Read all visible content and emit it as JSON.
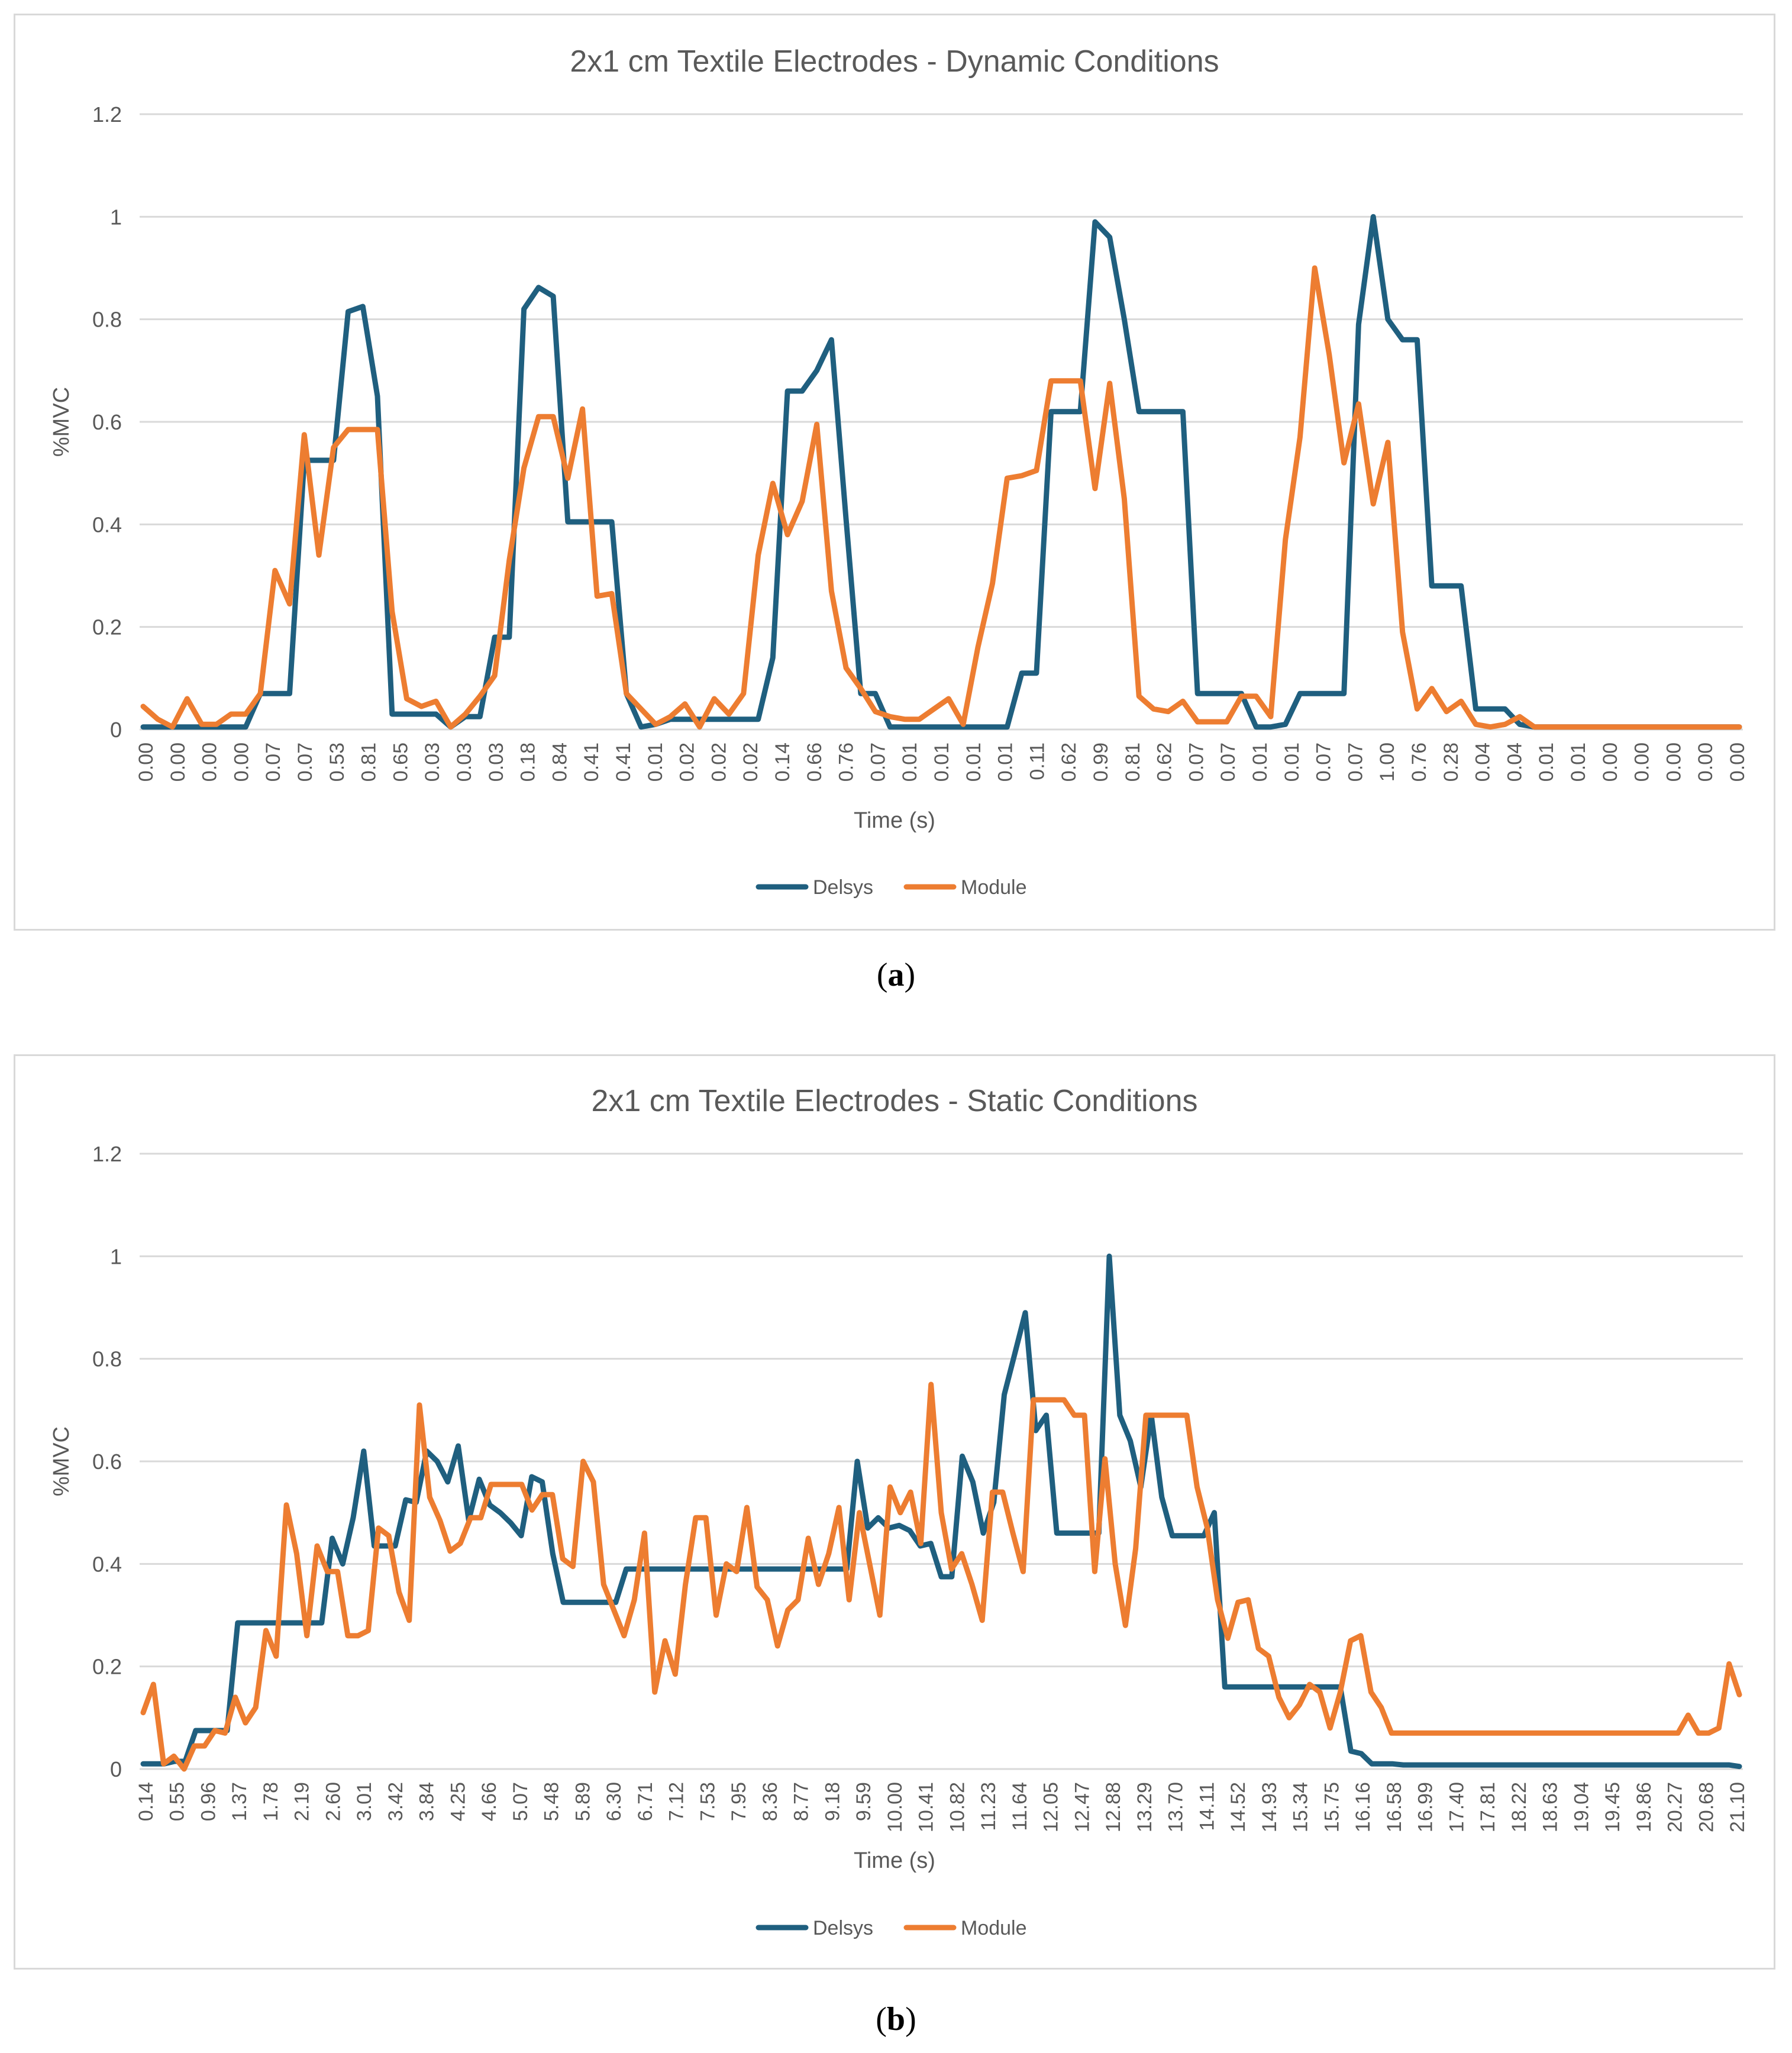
{
  "figures": [
    {
      "caption_letter": "a"
    },
    {
      "caption_letter": "b"
    }
  ],
  "colors": {
    "delsys": "#1f5f7f",
    "module": "#ed7d31",
    "grid": "#d9d9d9",
    "text": "#595959"
  },
  "chart_data": [
    {
      "type": "line",
      "title": "2x1 cm Textile Electrodes - Dynamic Conditions",
      "xlabel": "Time (s)",
      "ylabel": "%MVC",
      "ylim": [
        0,
        1.2
      ],
      "yticks": [
        "0",
        "0.2",
        "0.4",
        "0.6",
        "0.8",
        "1",
        "1.2"
      ],
      "grid": true,
      "legend": "bottom-center",
      "xtick_labels": [
        "0.00",
        "0.00",
        "0.00",
        "0.00",
        "0.07",
        "0.07",
        "0.53",
        "0.81",
        "0.65",
        "0.03",
        "0.03",
        "0.03",
        "0.18",
        "0.84",
        "0.41",
        "0.41",
        "0.01",
        "0.02",
        "0.02",
        "0.02",
        "0.14",
        "0.66",
        "0.76",
        "0.07",
        "0.01",
        "0.01",
        "0.01",
        "0.01",
        "0.11",
        "0.62",
        "0.99",
        "0.81",
        "0.62",
        "0.07",
        "0.07",
        "0.01",
        "0.01",
        "0.07",
        "0.07",
        "1.00",
        "0.76",
        "0.28",
        "0.04",
        "0.04",
        "0.01",
        "0.01",
        "0.00",
        "0.00",
        "0.00",
        "0.00",
        "0.00"
      ],
      "series": [
        {
          "name": "Delsys",
          "values": [
            0.005,
            0.005,
            0.005,
            0.005,
            0.005,
            0.005,
            0.005,
            0.005,
            0.07,
            0.07,
            0.07,
            0.525,
            0.525,
            0.525,
            0.815,
            0.825,
            0.65,
            0.03,
            0.03,
            0.03,
            0.03,
            0.005,
            0.025,
            0.025,
            0.18,
            0.18,
            0.82,
            0.862,
            0.845,
            0.405,
            0.405,
            0.405,
            0.405,
            0.07,
            0.005,
            0.01,
            0.02,
            0.02,
            0.02,
            0.02,
            0.02,
            0.02,
            0.02,
            0.14,
            0.66,
            0.66,
            0.7,
            0.76,
            0.41,
            0.07,
            0.07,
            0.005,
            0.005,
            0.005,
            0.005,
            0.005,
            0.005,
            0.005,
            0.005,
            0.005,
            0.11,
            0.11,
            0.62,
            0.62,
            0.62,
            0.99,
            0.96,
            0.8,
            0.62,
            0.62,
            0.62,
            0.62,
            0.07,
            0.07,
            0.07,
            0.07,
            0.005,
            0.005,
            0.01,
            0.07,
            0.07,
            0.07,
            0.07,
            0.79,
            1.0,
            0.8,
            0.76,
            0.76,
            0.28,
            0.28,
            0.28,
            0.04,
            0.04,
            0.04,
            0.01,
            0.005,
            0.005,
            0.005,
            0.005,
            0.005,
            0.005,
            0.005,
            0.005,
            0.005,
            0.005,
            0.005,
            0.005,
            0.005,
            0.005,
            0.005
          ]
        },
        {
          "name": "Module",
          "values": [
            0.045,
            0.02,
            0.005,
            0.06,
            0.01,
            0.01,
            0.03,
            0.03,
            0.07,
            0.31,
            0.245,
            0.575,
            0.34,
            0.55,
            0.585,
            0.585,
            0.585,
            0.23,
            0.06,
            0.045,
            0.055,
            0.005,
            0.03,
            0.065,
            0.105,
            0.33,
            0.51,
            0.61,
            0.61,
            0.49,
            0.625,
            0.26,
            0.265,
            0.07,
            0.04,
            0.01,
            0.025,
            0.05,
            0.005,
            0.06,
            0.03,
            0.07,
            0.34,
            0.48,
            0.38,
            0.445,
            0.595,
            0.27,
            0.12,
            0.08,
            0.035,
            0.025,
            0.02,
            0.02,
            0.04,
            0.06,
            0.01,
            0.16,
            0.285,
            0.49,
            0.495,
            0.505,
            0.68,
            0.68,
            0.68,
            0.47,
            0.675,
            0.45,
            0.065,
            0.04,
            0.035,
            0.055,
            0.015,
            0.015,
            0.015,
            0.065,
            0.065,
            0.025,
            0.37,
            0.57,
            0.9,
            0.73,
            0.52,
            0.635,
            0.44,
            0.56,
            0.19,
            0.04,
            0.08,
            0.035,
            0.055,
            0.01,
            0.005,
            0.01,
            0.025,
            0.005,
            0.005,
            0.005,
            0.005,
            0.005,
            0.005,
            0.005,
            0.005,
            0.005,
            0.005,
            0.005,
            0.005,
            0.005,
            0.005,
            0.005
          ]
        }
      ]
    },
    {
      "type": "line",
      "title": "2x1 cm Textile Electrodes - Static Conditions",
      "xlabel": "Time (s)",
      "ylabel": "%MVC",
      "ylim": [
        0,
        1.2
      ],
      "yticks": [
        "0",
        "0.2",
        "0.4",
        "0.6",
        "0.8",
        "1",
        "1.2"
      ],
      "grid": true,
      "legend": "bottom-center",
      "xtick_labels": [
        "0.14",
        "0.55",
        "0.96",
        "1.37",
        "1.78",
        "2.19",
        "2.60",
        "3.01",
        "3.42",
        "3.84",
        "4.25",
        "4.66",
        "5.07",
        "5.48",
        "5.89",
        "6.30",
        "6.71",
        "7.12",
        "7.53",
        "7.95",
        "8.36",
        "8.77",
        "9.18",
        "9.59",
        "10.00",
        "10.41",
        "10.82",
        "11.23",
        "11.64",
        "12.05",
        "12.47",
        "12.88",
        "13.29",
        "13.70",
        "14.11",
        "14.52",
        "14.93",
        "15.34",
        "15.75",
        "16.16",
        "16.58",
        "16.99",
        "17.40",
        "17.81",
        "18.22",
        "18.63",
        "19.04",
        "19.45",
        "19.86",
        "20.27",
        "20.68",
        "21.10"
      ],
      "series": [
        {
          "name": "Delsys",
          "values": [
            0.01,
            0.01,
            0.01,
            0.015,
            0.015,
            0.075,
            0.075,
            0.075,
            0.075,
            0.285,
            0.285,
            0.285,
            0.285,
            0.285,
            0.285,
            0.285,
            0.285,
            0.285,
            0.45,
            0.4,
            0.49,
            0.62,
            0.435,
            0.435,
            0.435,
            0.525,
            0.52,
            0.62,
            0.6,
            0.56,
            0.63,
            0.485,
            0.565,
            0.515,
            0.5,
            0.48,
            0.455,
            0.57,
            0.56,
            0.42,
            0.325,
            0.325,
            0.325,
            0.325,
            0.325,
            0.325,
            0.39,
            0.39,
            0.39,
            0.39,
            0.39,
            0.39,
            0.39,
            0.39,
            0.39,
            0.39,
            0.39,
            0.39,
            0.39,
            0.39,
            0.39,
            0.39,
            0.39,
            0.39,
            0.39,
            0.39,
            0.39,
            0.39,
            0.6,
            0.47,
            0.49,
            0.47,
            0.475,
            0.465,
            0.435,
            0.44,
            0.375,
            0.375,
            0.61,
            0.56,
            0.46,
            0.52,
            0.73,
            0.81,
            0.89,
            0.66,
            0.69,
            0.46,
            0.46,
            0.46,
            0.46,
            0.46,
            1.0,
            0.69,
            0.64,
            0.55,
            0.69,
            0.53,
            0.455,
            0.455,
            0.455,
            0.455,
            0.5,
            0.16,
            0.16,
            0.16,
            0.16,
            0.16,
            0.16,
            0.16,
            0.16,
            0.16,
            0.16,
            0.16,
            0.16,
            0.035,
            0.03,
            0.01,
            0.01,
            0.01,
            0.008,
            0.008,
            0.008,
            0.008,
            0.008,
            0.008,
            0.008,
            0.008,
            0.008,
            0.008,
            0.008,
            0.008,
            0.008,
            0.008,
            0.008,
            0.008,
            0.008,
            0.008,
            0.008,
            0.008,
            0.008,
            0.008,
            0.008,
            0.008,
            0.008,
            0.008,
            0.008,
            0.008,
            0.008,
            0.008,
            0.008,
            0.008,
            0.005
          ]
        },
        {
          "name": "Module",
          "values": [
            0.11,
            0.165,
            0.01,
            0.025,
            0.0,
            0.045,
            0.045,
            0.075,
            0.07,
            0.14,
            0.09,
            0.12,
            0.27,
            0.22,
            0.515,
            0.42,
            0.26,
            0.435,
            0.385,
            0.385,
            0.26,
            0.26,
            0.27,
            0.47,
            0.455,
            0.345,
            0.29,
            0.71,
            0.53,
            0.485,
            0.425,
            0.44,
            0.49,
            0.49,
            0.555,
            0.555,
            0.555,
            0.555,
            0.505,
            0.535,
            0.535,
            0.41,
            0.395,
            0.6,
            0.56,
            0.36,
            0.31,
            0.26,
            0.33,
            0.46,
            0.15,
            0.25,
            0.185,
            0.36,
            0.49,
            0.49,
            0.3,
            0.4,
            0.385,
            0.51,
            0.355,
            0.33,
            0.24,
            0.31,
            0.33,
            0.45,
            0.36,
            0.42,
            0.51,
            0.33,
            0.5,
            0.4,
            0.3,
            0.55,
            0.5,
            0.54,
            0.44,
            0.75,
            0.5,
            0.39,
            0.42,
            0.36,
            0.29,
            0.54,
            0.54,
            0.46,
            0.385,
            0.72,
            0.72,
            0.72,
            0.72,
            0.69,
            0.69,
            0.385,
            0.605,
            0.4,
            0.28,
            0.43,
            0.69,
            0.69,
            0.69,
            0.69,
            0.69,
            0.55,
            0.47,
            0.33,
            0.255,
            0.325,
            0.33,
            0.235,
            0.22,
            0.14,
            0.1,
            0.125,
            0.165,
            0.15,
            0.08,
            0.15,
            0.25,
            0.26,
            0.15,
            0.12,
            0.07,
            0.07,
            0.07,
            0.07,
            0.07,
            0.07,
            0.07,
            0.07,
            0.07,
            0.07,
            0.07,
            0.07,
            0.07,
            0.07,
            0.07,
            0.07,
            0.07,
            0.07,
            0.07,
            0.07,
            0.07,
            0.07,
            0.07,
            0.07,
            0.07,
            0.07,
            0.07,
            0.07,
            0.07,
            0.105,
            0.07,
            0.07,
            0.08,
            0.205,
            0.145
          ]
        }
      ]
    }
  ]
}
